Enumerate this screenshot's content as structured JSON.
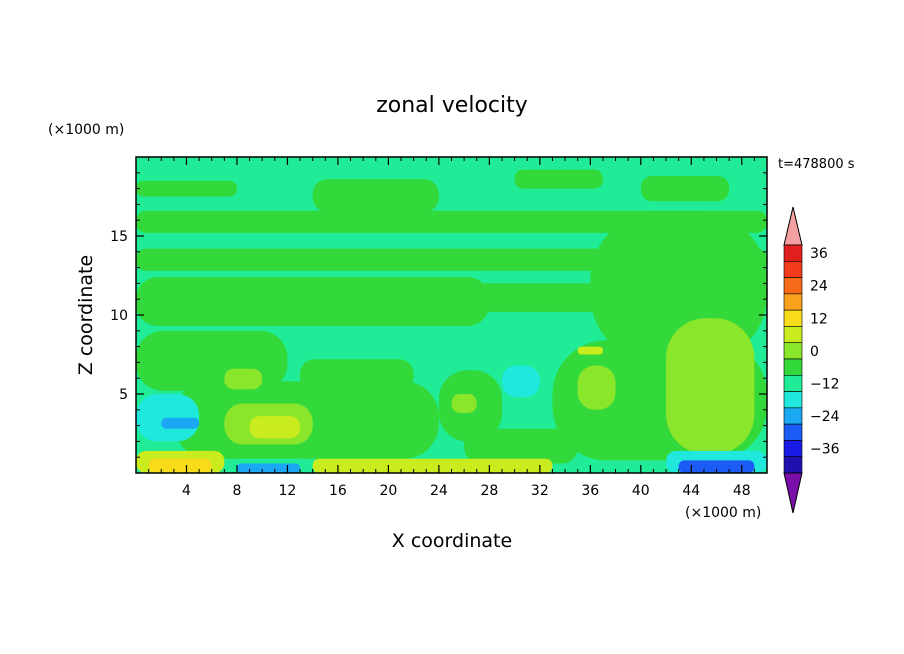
{
  "chart_data": {
    "type": "heatmap",
    "title": "zonal velocity",
    "time_label": "t=478800 s",
    "xlabel": "X coordinate",
    "ylabel": "Z coordinate",
    "x_unit": "(×1000 m)",
    "y_unit": "(×1000 m)",
    "xlim": [
      0,
      50
    ],
    "ylim": [
      0,
      20
    ],
    "x_ticks": [
      4,
      8,
      12,
      16,
      20,
      24,
      28,
      32,
      36,
      40,
      44,
      48
    ],
    "y_ticks": [
      5,
      10,
      15
    ],
    "colorbar": {
      "ticks": [
        36,
        24,
        12,
        0,
        -12,
        -24,
        -36
      ],
      "levels": [
        {
          "lo": 36,
          "hi": 42,
          "color": "#e0201e"
        },
        {
          "lo": 30,
          "hi": 36,
          "color": "#f23c1c"
        },
        {
          "lo": 24,
          "hi": 30,
          "color": "#f76a18"
        },
        {
          "lo": 18,
          "hi": 24,
          "color": "#f9a01c"
        },
        {
          "lo": 12,
          "hi": 18,
          "color": "#f8dc1c"
        },
        {
          "lo": 6,
          "hi": 12,
          "color": "#c8ec1e"
        },
        {
          "lo": 0,
          "hi": 6,
          "color": "#8ae62a"
        },
        {
          "lo": -6,
          "hi": 0,
          "color": "#33d83a"
        },
        {
          "lo": -12,
          "hi": -6,
          "color": "#20ec98"
        },
        {
          "lo": -18,
          "hi": -12,
          "color": "#20e8dc"
        },
        {
          "lo": -24,
          "hi": -18,
          "color": "#1aa8f2"
        },
        {
          "lo": -30,
          "hi": -24,
          "color": "#1a5cf4"
        },
        {
          "lo": -36,
          "hi": -30,
          "color": "#1a1ae6"
        },
        {
          "lo": -42,
          "hi": -36,
          "color": "#2010b0"
        }
      ],
      "over_color": "#f4a0a0",
      "under_color": "#7a0ea8"
    },
    "background_color": "#20ec98",
    "regions": [
      {
        "x": [
          0,
          50
        ],
        "z": [
          19.0,
          20
        ],
        "value": -10
      },
      {
        "x": [
          0,
          8
        ],
        "z": [
          17.5,
          18.5
        ],
        "value": -2
      },
      {
        "x": [
          14,
          24
        ],
        "z": [
          16.5,
          18.6
        ],
        "value": -2
      },
      {
        "x": [
          30,
          37
        ],
        "z": [
          18.0,
          19.2
        ],
        "value": -2
      },
      {
        "x": [
          40,
          47
        ],
        "z": [
          17.2,
          18.8
        ],
        "value": -2
      },
      {
        "x": [
          0,
          50
        ],
        "z": [
          15.2,
          16.6
        ],
        "value": -2
      },
      {
        "x": [
          0,
          50
        ],
        "z": [
          12.8,
          14.2
        ],
        "value": -2
      },
      {
        "x": [
          36,
          50
        ],
        "z": [
          7.0,
          16.5
        ],
        "value": -2
      },
      {
        "x": [
          0,
          28
        ],
        "z": [
          9.3,
          12.4
        ],
        "value": -2
      },
      {
        "x": [
          26,
          50
        ],
        "z": [
          10.2,
          12.0
        ],
        "value": -2
      },
      {
        "x": [
          0,
          12
        ],
        "z": [
          5.2,
          9.0
        ],
        "value": -2
      },
      {
        "x": [
          3,
          24
        ],
        "z": [
          0.9,
          5.8
        ],
        "value": -2
      },
      {
        "x": [
          13,
          22
        ],
        "z": [
          5.2,
          7.2
        ],
        "value": -2
      },
      {
        "x": [
          24,
          29
        ],
        "z": [
          2.0,
          6.5
        ],
        "value": -2
      },
      {
        "x": [
          33,
          50
        ],
        "z": [
          0.8,
          8.4
        ],
        "value": -2
      },
      {
        "x": [
          26,
          35
        ],
        "z": [
          0.6,
          2.8
        ],
        "value": -2
      },
      {
        "x": [
          42,
          49
        ],
        "z": [
          1.2,
          9.8
        ],
        "value": 3
      },
      {
        "x": [
          35,
          38
        ],
        "z": [
          4.0,
          6.8
        ],
        "value": 3
      },
      {
        "x": [
          7,
          14
        ],
        "z": [
          1.8,
          4.4
        ],
        "value": 3
      },
      {
        "x": [
          7,
          10
        ],
        "z": [
          5.3,
          6.6
        ],
        "value": 3
      },
      {
        "x": [
          25,
          27
        ],
        "z": [
          3.8,
          5.0
        ],
        "value": 3
      },
      {
        "x": [
          9,
          13
        ],
        "z": [
          2.2,
          3.6
        ],
        "value": 9
      },
      {
        "x": [
          35,
          37
        ],
        "z": [
          7.5,
          8.0
        ],
        "value": 9
      },
      {
        "x": [
          29,
          32
        ],
        "z": [
          4.8,
          6.8
        ],
        "value": -15
      },
      {
        "x": [
          0,
          5
        ],
        "z": [
          2.0,
          5.0
        ],
        "value": -15
      },
      {
        "x": [
          2,
          5
        ],
        "z": [
          2.8,
          3.5
        ],
        "value": -21
      },
      {
        "x": [
          0,
          7
        ],
        "z": [
          0,
          1.4
        ],
        "value": 9
      },
      {
        "x": [
          1,
          6
        ],
        "z": [
          0,
          0.9
        ],
        "value": 15
      },
      {
        "x": [
          14,
          33
        ],
        "z": [
          0,
          0.9
        ],
        "value": 9
      },
      {
        "x": [
          8,
          13
        ],
        "z": [
          0,
          0.6
        ],
        "value": -21
      },
      {
        "x": [
          42,
          50
        ],
        "z": [
          0,
          1.4
        ],
        "value": -15
      },
      {
        "x": [
          43,
          49
        ],
        "z": [
          0,
          0.8
        ],
        "value": -27
      }
    ]
  }
}
